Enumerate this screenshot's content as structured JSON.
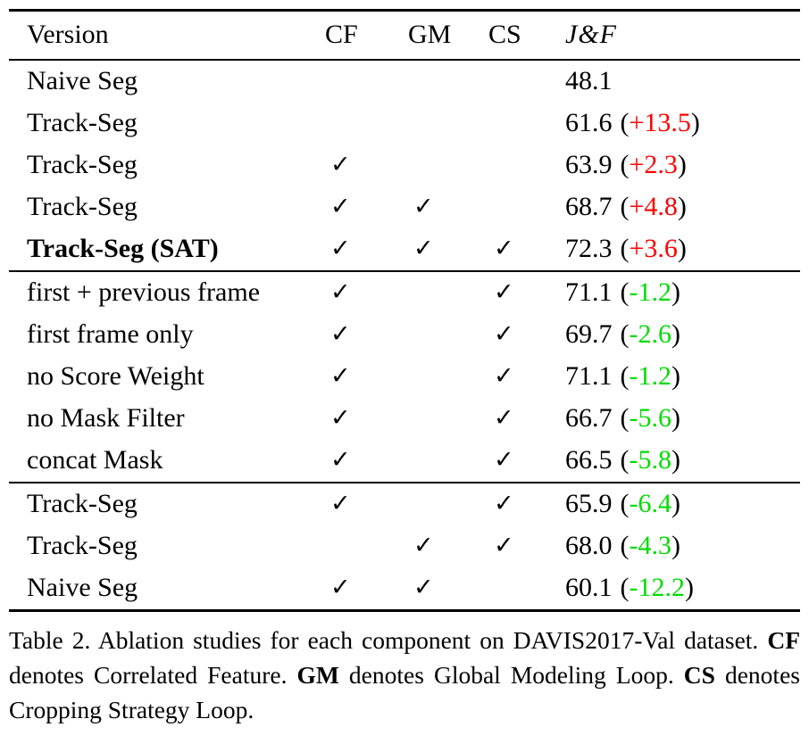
{
  "colors": {
    "positive_delta": "#fe0000",
    "negative_delta": "#00dc00",
    "rule": "#000000",
    "background": "#ffffff"
  },
  "chars": {
    "open_paren": "(",
    "close_paren": ")",
    "check": "✓"
  },
  "table": {
    "headers": {
      "version": "Version",
      "cf": "CF",
      "gm": "GM",
      "cs": "CS",
      "jf": "J&F"
    },
    "sections": [
      {
        "rows": [
          {
            "version": "Naive Seg",
            "cf": "",
            "gm": "",
            "cs": "",
            "score": "48.1",
            "delta": ""
          },
          {
            "version": "Track-Seg",
            "cf": "",
            "gm": "",
            "cs": "",
            "score": "61.6",
            "delta": "+13.5"
          },
          {
            "version": "Track-Seg",
            "cf": "✓",
            "gm": "",
            "cs": "",
            "score": "63.9",
            "delta": "+2.3"
          },
          {
            "version": "Track-Seg",
            "cf": "✓",
            "gm": "✓",
            "cs": "",
            "score": "68.7",
            "delta": "+4.8"
          },
          {
            "version": "Track-Seg (SAT)",
            "cf": "✓",
            "gm": "✓",
            "cs": "✓",
            "score": "72.3",
            "delta": "+3.6"
          }
        ]
      },
      {
        "rows": [
          {
            "version": "first + previous frame",
            "cf": "✓",
            "gm": "",
            "cs": "✓",
            "score": "71.1",
            "delta": "-1.2"
          },
          {
            "version": "first frame only",
            "cf": "✓",
            "gm": "",
            "cs": "✓",
            "score": "69.7",
            "delta": "-2.6"
          },
          {
            "version": "no Score Weight",
            "cf": "✓",
            "gm": "",
            "cs": "✓",
            "score": "71.1",
            "delta": "-1.2"
          },
          {
            "version": "no Mask Filter",
            "cf": "✓",
            "gm": "",
            "cs": "✓",
            "score": "66.7",
            "delta": "-5.6"
          },
          {
            "version": "concat Mask",
            "cf": "✓",
            "gm": "",
            "cs": "✓",
            "score": "66.5",
            "delta": "-5.8"
          }
        ]
      },
      {
        "rows": [
          {
            "version": "Track-Seg",
            "cf": "✓",
            "gm": "",
            "cs": "✓",
            "score": "65.9",
            "delta": "-6.4"
          },
          {
            "version": "Track-Seg",
            "cf": "",
            "gm": "✓",
            "cs": "✓",
            "score": "68.0",
            "delta": "-4.3"
          },
          {
            "version": "Naive Seg",
            "cf": "✓",
            "gm": "✓",
            "cs": "",
            "score": "60.1",
            "delta": "-12.2"
          }
        ]
      }
    ]
  },
  "caption": {
    "segments": [
      {
        "text": "Table 2. Ablation studies for each component on DAVIS2017-Val dataset. "
      },
      {
        "text": "CF"
      },
      {
        "text": " denotes Correlated Feature. "
      },
      {
        "text": "GM"
      },
      {
        "text": " denotes Global Modeling Loop. "
      },
      {
        "text": "CS"
      },
      {
        "text": " denotes Cropping Strategy Loop."
      }
    ]
  }
}
